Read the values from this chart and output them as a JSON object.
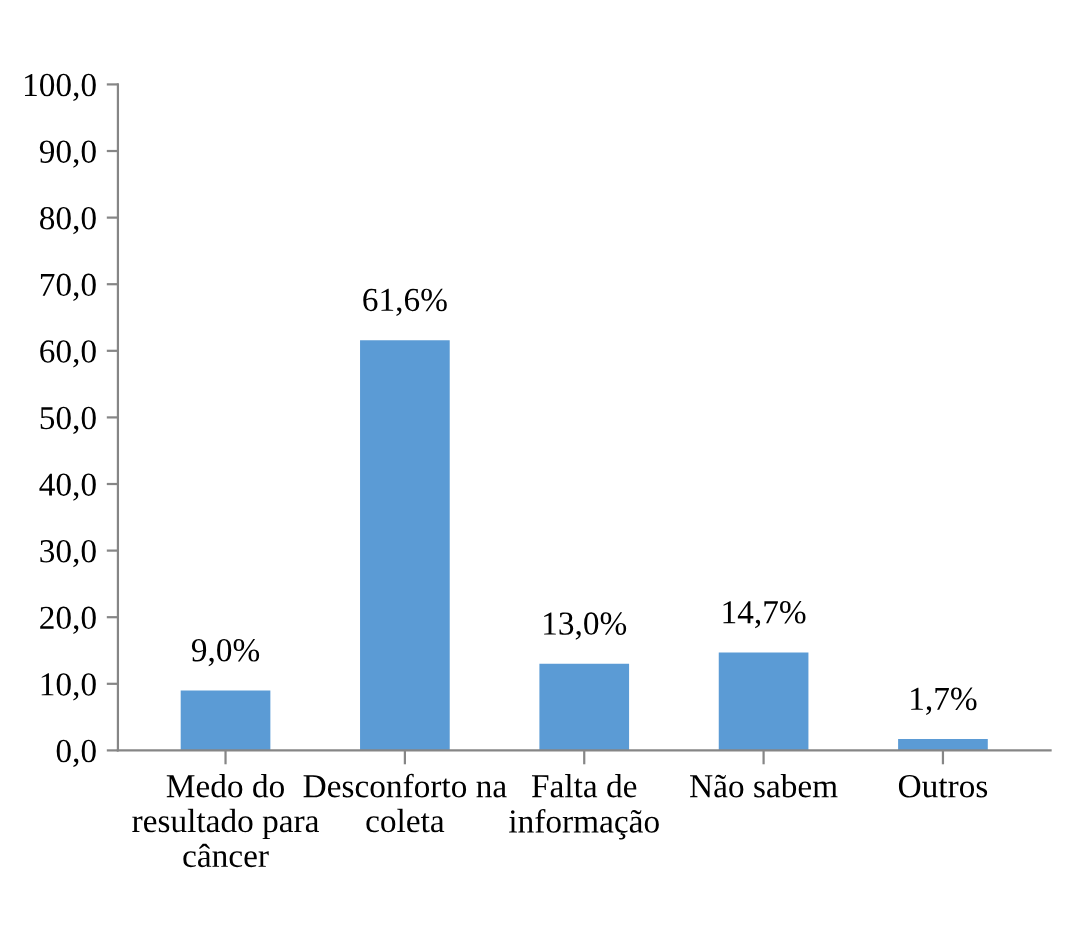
{
  "chart_data": {
    "type": "bar",
    "categories": [
      "Medo do\nresultado para\ncâncer",
      "Desconforto na\ncoleta",
      "Falta de\ninformação",
      "Não sabem",
      "Outros"
    ],
    "values": [
      9.0,
      61.6,
      13.0,
      14.7,
      1.7
    ],
    "value_labels": [
      "9,0%",
      "61,6%",
      "13,0%",
      "14,7%",
      "1,7%"
    ],
    "color": "#5b9bd5",
    "ylim": [
      0,
      100
    ],
    "yticks": [
      {
        "value": 0,
        "label": "0,0"
      },
      {
        "value": 10,
        "label": "10,0"
      },
      {
        "value": 20,
        "label": "20,0"
      },
      {
        "value": 30,
        "label": "30,0"
      },
      {
        "value": 40,
        "label": "40,0"
      },
      {
        "value": 50,
        "label": "50,0"
      },
      {
        "value": 60,
        "label": "60,0"
      },
      {
        "value": 70,
        "label": "70,0"
      },
      {
        "value": 80,
        "label": "80,0"
      },
      {
        "value": 90,
        "label": "90,0"
      },
      {
        "value": 100,
        "label": "100,0"
      }
    ],
    "grid": false
  }
}
